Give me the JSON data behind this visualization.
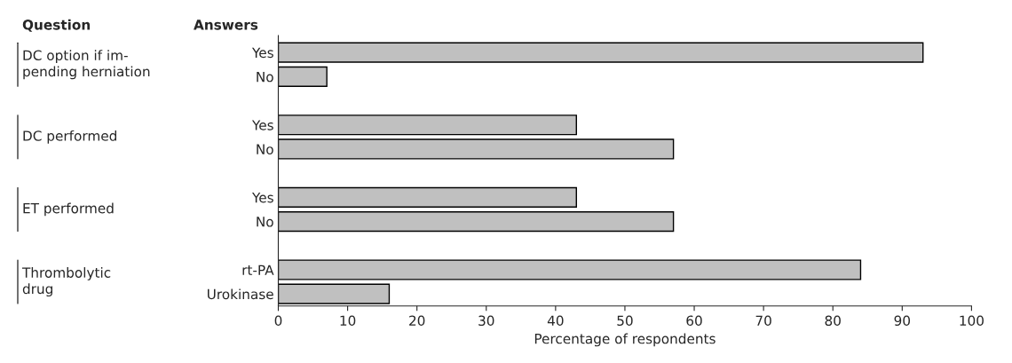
{
  "chart_data": {
    "type": "bar",
    "orientation": "horizontal",
    "xlabel": "Percentage of respondents",
    "categories": [
      "Yes",
      "No",
      null,
      "Yes",
      "No",
      null,
      "Yes",
      "No",
      null,
      "rt-PA",
      "Urokinase"
    ],
    "values": [
      93,
      7,
      null,
      43,
      57,
      null,
      43,
      57,
      null,
      84,
      16
    ],
    "color": "#c0c0c0",
    "xlim": [
      0,
      100
    ],
    "xticks": [
      0,
      10,
      20,
      30,
      40,
      50,
      60,
      70,
      80,
      90,
      100
    ],
    "grid": false,
    "legend": false,
    "annotations": [
      "Question",
      "Answers",
      "DC option if im-\npending herniation",
      "DC performed",
      "ET performed",
      "Thrombolytic\ndrug"
    ]
  }
}
